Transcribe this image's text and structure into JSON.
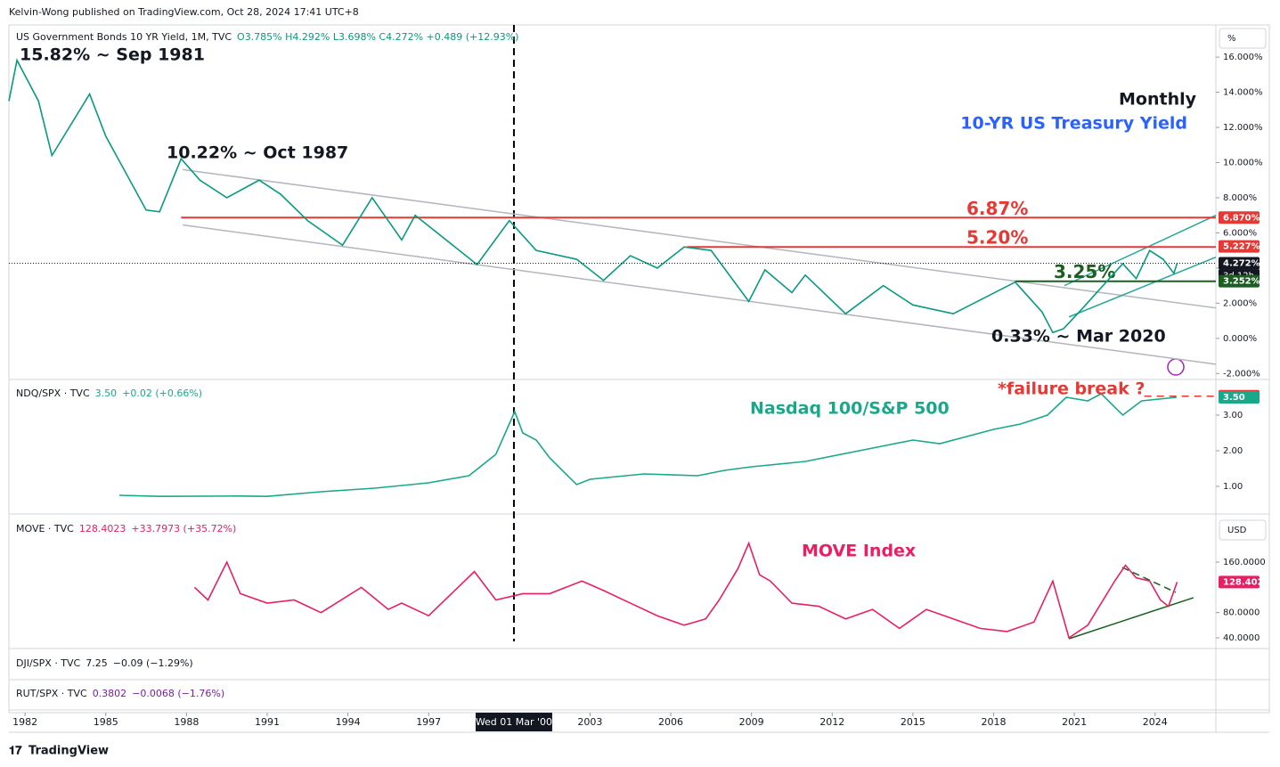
{
  "header": "Kelvin-Wong published on TradingView.com, Oct 28, 2024 17:41 UTC+8",
  "footer": "TradingView",
  "x_axis": {
    "xlim": [
      1981.4,
      2026.26
    ],
    "xticks": [
      1982,
      1985,
      1988,
      1991,
      1994,
      1997,
      2003,
      2006,
      2009,
      2012,
      2015,
      2018,
      2021,
      2024
    ]
  },
  "crosshair": {
    "x": 2000.17,
    "label": "Wed 01 Mar '00"
  },
  "chart_data": [
    {
      "type": "line",
      "legend": "US Government Bonds 10 YR Yield, 1M, TVC",
      "stats": [
        "O3.785% H4.292% L3.698% C4.272% +0.489 (+12.93%)"
      ],
      "axis_unit": "%",
      "color": "#089981",
      "x": [
        1981.4,
        1981.7,
        1982.5,
        1983.0,
        1984.4,
        1985.0,
        1986.5,
        1987.0,
        1987.8,
        1988.5,
        1989.5,
        1990.7,
        1991.5,
        1992.5,
        1993.8,
        1994.9,
        1996.0,
        1996.5,
        1998.8,
        2000.0,
        2001.0,
        2002.5,
        2003.5,
        2004.5,
        2005.5,
        2006.5,
        2007.5,
        2008.9,
        2009.5,
        2010.5,
        2011.0,
        2012.5,
        2013.9,
        2015.0,
        2016.5,
        2018.8,
        2019.8,
        2020.2,
        2020.6,
        2021.3,
        2022.8,
        2023.3,
        2023.8,
        2024.3,
        2024.7,
        2024.82
      ],
      "values": [
        13.5,
        15.82,
        13.5,
        10.4,
        13.9,
        11.5,
        7.3,
        7.2,
        10.22,
        9.0,
        8.0,
        9.0,
        8.2,
        6.7,
        5.3,
        8.0,
        5.6,
        7.0,
        4.2,
        6.7,
        5.0,
        4.5,
        3.3,
        4.7,
        4.0,
        5.2,
        5.0,
        2.1,
        3.9,
        2.6,
        3.6,
        1.4,
        3.0,
        1.9,
        1.4,
        3.2,
        1.5,
        0.33,
        0.55,
        1.7,
        4.25,
        3.4,
        5.0,
        4.5,
        3.7,
        4.272
      ],
      "ylim": [
        -2.34,
        17.83
      ],
      "yticks": [
        {
          "value": -2,
          "label": "-2.000%"
        },
        {
          "value": 0,
          "label": "0.000%"
        },
        {
          "value": 2,
          "label": "2.000%"
        },
        {
          "value": 4,
          "label": "4.000%"
        },
        {
          "value": 6,
          "label": "6.000%"
        },
        {
          "value": 8,
          "label": "8.000%"
        },
        {
          "value": 10,
          "label": "10.000%"
        },
        {
          "value": 12,
          "label": "12.000%"
        },
        {
          "value": 14,
          "label": "14.000%"
        },
        {
          "value": 16,
          "label": "16.000%"
        }
      ],
      "levels": [
        {
          "value": 6.87,
          "label": "6.87%",
          "color": "#e53935",
          "x_from": 1987.8
        },
        {
          "value": 5.2,
          "label": "5.20%",
          "color": "#e53935",
          "x_from": 2006.6
        },
        {
          "value": 3.25,
          "label": "3.25%",
          "color": "#1b5e20",
          "x_from": 2018.8
        }
      ],
      "trendlines": [
        {
          "x": [
            1987.86,
            2026.26
          ],
          "y": [
            9.6,
            1.73
          ],
          "color": "#b2b5be"
        },
        {
          "x": [
            1987.86,
            2026.26
          ],
          "y": [
            6.45,
            -1.47
          ],
          "color": "#b2b5be"
        },
        {
          "x": [
            2020.63,
            2026.26
          ],
          "y": [
            3.0,
            7.0
          ],
          "color": "#26a69a"
        },
        {
          "x": [
            2020.8,
            2026.26
          ],
          "y": [
            1.22,
            4.62
          ],
          "color": "#26a69a"
        }
      ],
      "price_labels": [
        {
          "value": 6.87,
          "label": "6.870%",
          "color": "#e53935"
        },
        {
          "value": 5.227,
          "label": "5.227%",
          "color": "#e53935"
        },
        {
          "value": 4.272,
          "label": "4.272%",
          "color": "#131722",
          "style": "dotted",
          "countdown": "3d 12h"
        },
        {
          "value": 3.252,
          "label": "3.252%",
          "color": "#1b5e20"
        }
      ],
      "annotations": [
        "15.82% ~ Sep 1981",
        "10.22% ~ Oct 1987",
        "0.33% ~ Mar 2020",
        "Monthly",
        "10-YR US Treasury Yield"
      ]
    },
    {
      "type": "line",
      "legend": "NDQ/SPX · TVC",
      "stats": [
        "3.50",
        "+0.02 (+0.66%)"
      ],
      "color": "#1aa88a",
      "x": [
        1985.5,
        1987,
        1990,
        1991,
        1993,
        1995,
        1997,
        1998.5,
        1999.5,
        2000.2,
        2000.5,
        2001,
        2001.5,
        2002.5,
        2003,
        2005,
        2007,
        2008,
        2009,
        2011,
        2013,
        2015,
        2016,
        2018,
        2019,
        2020,
        2020.7,
        2021.5,
        2022,
        2022.8,
        2023.5,
        2024.8
      ],
      "values": [
        0.75,
        0.72,
        0.73,
        0.72,
        0.85,
        0.95,
        1.1,
        1.3,
        1.9,
        3.1,
        2.5,
        2.3,
        1.8,
        1.05,
        1.2,
        1.35,
        1.3,
        1.45,
        1.55,
        1.7,
        2.0,
        2.3,
        2.2,
        2.6,
        2.75,
        3.0,
        3.5,
        3.4,
        3.6,
        3.0,
        3.4,
        3.5
      ],
      "ylim": [
        0.225,
        3.95
      ],
      "yticks": [
        {
          "value": 1,
          "label": "1.00"
        },
        {
          "value": 2,
          "label": "2.00"
        },
        {
          "value": 3,
          "label": "3.00"
        }
      ],
      "levels": [
        {
          "value": 3.53,
          "color": "#e53935",
          "x_from": 2023.6,
          "dash": true
        }
      ],
      "trendlines": [],
      "price_labels": [
        {
          "value": 3.53,
          "label": "3.53",
          "color": "#e53935"
        },
        {
          "value": 3.5,
          "label": "3.50",
          "color": "#1aa88a"
        }
      ],
      "annotations": [
        "Nasdaq 100/S&P 500",
        "*failure break ?"
      ]
    },
    {
      "type": "line",
      "legend": "MOVE · TVC",
      "stats": [
        "128.4023",
        "+33.7973 (+35.72%)"
      ],
      "axis_unit": "USD",
      "color": "#e91e63",
      "x": [
        1988.3,
        1988.8,
        1989.5,
        1990,
        1991,
        1992,
        1993,
        1994.5,
        1995.5,
        1996,
        1997,
        1998.7,
        1999.5,
        2000.5,
        2001.5,
        2002.7,
        2003.5,
        2004.5,
        2005.5,
        2006.5,
        2007.3,
        2007.8,
        2008.5,
        2008.9,
        2009.3,
        2009.7,
        2010.5,
        2011.5,
        2012.5,
        2013.5,
        2014.5,
        2015.5,
        2016.5,
        2017.5,
        2018.5,
        2019.5,
        2020.2,
        2020.8,
        2021.5,
        2022.5,
        2022.9,
        2023.3,
        2023.8,
        2024.2,
        2024.5,
        2024.82
      ],
      "values": [
        120,
        100,
        160,
        110,
        95,
        100,
        80,
        120,
        85,
        95,
        75,
        145,
        100,
        110,
        110,
        130,
        115,
        95,
        75,
        60,
        70,
        100,
        150,
        190,
        140,
        130,
        95,
        90,
        70,
        85,
        55,
        85,
        70,
        55,
        50,
        65,
        130,
        40,
        60,
        130,
        155,
        135,
        130,
        100,
        90,
        128.4023
      ],
      "ylim": [
        23.05,
        232
      ],
      "yticks": [
        {
          "value": 40,
          "label": "40.0000"
        },
        {
          "value": 80,
          "label": "80.0000"
        },
        {
          "value": 160,
          "label": "160.0000"
        }
      ],
      "levels": [],
      "trendlines": [
        {
          "x": [
            2020.8,
            2025.43
          ],
          "y": [
            38.6,
            103.6
          ],
          "color": "#1b5e20"
        },
        {
          "x": [
            2022.78,
            2024.77
          ],
          "y": [
            151.6,
            112
          ],
          "color": "#1b5e20",
          "dash": true
        }
      ],
      "price_labels": [
        {
          "value": 128.4023,
          "label": "128.4023",
          "color": "#e91e63"
        }
      ],
      "annotations": [
        "MOVE Index"
      ]
    }
  ],
  "collapsed_panes": [
    {
      "legend": "DJI/SPX · TVC",
      "stats": [
        "7.25",
        "−0.09 (−1.29%)"
      ]
    },
    {
      "legend": "RUT/SPX · TVC",
      "stats": [
        "0.3802",
        "−0.0068 (−1.76%)"
      ]
    }
  ]
}
